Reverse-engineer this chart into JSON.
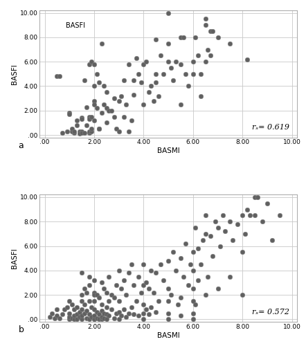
{
  "plot_a": {
    "title_text": "BASFI",
    "rs_label": "rₛ= 0.619",
    "xlabel": "BASMI",
    "ylabel": "BASFI",
    "xlim": [
      -0.2,
      10.2
    ],
    "ylim": [
      -0.2,
      10.2
    ],
    "xticks": [
      0,
      2,
      4,
      6,
      8,
      10
    ],
    "yticks": [
      0,
      2,
      4,
      6,
      8,
      10
    ],
    "x": [
      0.5,
      0.6,
      0.7,
      0.9,
      1.0,
      1.0,
      1.1,
      1.1,
      1.2,
      1.2,
      1.3,
      1.3,
      1.4,
      1.4,
      1.5,
      1.5,
      1.5,
      1.5,
      1.6,
      1.6,
      1.7,
      1.7,
      1.8,
      1.8,
      1.8,
      1.8,
      1.8,
      1.9,
      1.9,
      1.9,
      1.9,
      2.0,
      2.0,
      2.0,
      2.0,
      2.0,
      2.1,
      2.1,
      2.2,
      2.2,
      2.2,
      2.3,
      2.3,
      2.4,
      2.4,
      2.5,
      2.5,
      2.5,
      2.6,
      2.7,
      2.8,
      2.8,
      2.9,
      3.0,
      3.0,
      3.1,
      3.2,
      3.2,
      3.3,
      3.4,
      3.4,
      3.5,
      3.6,
      3.6,
      3.7,
      3.8,
      3.9,
      4.0,
      4.0,
      4.1,
      4.2,
      4.3,
      4.4,
      4.5,
      4.5,
      4.5,
      4.6,
      4.7,
      4.8,
      5.0,
      5.0,
      5.0,
      5.1,
      5.2,
      5.3,
      5.5,
      5.5,
      5.5,
      5.6,
      5.7,
      5.8,
      6.0,
      6.0,
      6.1,
      6.2,
      6.3,
      6.3,
      6.5,
      6.5,
      6.5,
      6.6,
      6.7,
      6.7,
      6.8,
      7.0,
      7.5,
      8.2
    ],
    "y": [
      4.8,
      4.8,
      0.2,
      0.3,
      1.8,
      1.7,
      0.3,
      0.5,
      0.2,
      0.3,
      1.2,
      0.8,
      0.3,
      0.1,
      0.3,
      0.2,
      1.4,
      1.3,
      0.2,
      4.5,
      2.3,
      0.8,
      0.2,
      0.3,
      1.5,
      1.3,
      5.8,
      6.0,
      0.3,
      0.5,
      1.5,
      1.2,
      2.8,
      4.0,
      5.8,
      2.5,
      5.0,
      2.2,
      0.5,
      4.3,
      0.5,
      7.5,
      1.8,
      2.5,
      4.0,
      1.0,
      2.2,
      3.5,
      2.0,
      2.0,
      1.5,
      3.0,
      0.5,
      0.3,
      2.8,
      3.2,
      1.5,
      4.5,
      2.5,
      0.3,
      5.8,
      1.2,
      4.5,
      3.3,
      6.3,
      5.0,
      4.3,
      2.5,
      5.8,
      6.0,
      3.5,
      4.0,
      2.8,
      5.0,
      4.3,
      7.8,
      3.2,
      6.5,
      5.0,
      7.5,
      6.0,
      10.0,
      5.5,
      4.5,
      6.0,
      2.5,
      5.8,
      8.0,
      8.0,
      5.0,
      4.0,
      5.0,
      6.0,
      8.0,
      6.5,
      3.2,
      5.0,
      6.0,
      9.0,
      9.5,
      7.0,
      6.5,
      8.5,
      8.5,
      8.0,
      7.5,
      6.2
    ]
  },
  "plot_b": {
    "rs_label": "rₛ= 0.572",
    "xlabel": "BASMI",
    "ylabel": "BASFI",
    "xlim": [
      -0.2,
      10.2
    ],
    "ylim": [
      -0.2,
      10.2
    ],
    "xticks": [
      0,
      2,
      4,
      6,
      8,
      10
    ],
    "yticks": [
      0,
      2,
      4,
      6,
      8,
      10
    ],
    "x": [
      0.2,
      0.3,
      0.4,
      0.5,
      0.5,
      0.6,
      0.7,
      0.8,
      0.9,
      1.0,
      1.0,
      1.0,
      1.0,
      1.1,
      1.1,
      1.2,
      1.2,
      1.2,
      1.3,
      1.3,
      1.3,
      1.4,
      1.4,
      1.5,
      1.5,
      1.5,
      1.5,
      1.5,
      1.5,
      1.6,
      1.6,
      1.6,
      1.7,
      1.7,
      1.7,
      1.8,
      1.8,
      1.8,
      1.8,
      1.8,
      1.9,
      1.9,
      2.0,
      2.0,
      2.0,
      2.0,
      2.0,
      2.0,
      2.0,
      2.0,
      2.1,
      2.1,
      2.1,
      2.2,
      2.2,
      2.2,
      2.3,
      2.3,
      2.3,
      2.3,
      2.3,
      2.4,
      2.4,
      2.4,
      2.5,
      2.5,
      2.5,
      2.5,
      2.6,
      2.6,
      2.6,
      2.7,
      2.7,
      2.8,
      2.8,
      2.9,
      2.9,
      3.0,
      3.0,
      3.0,
      3.0,
      3.1,
      3.1,
      3.2,
      3.2,
      3.3,
      3.3,
      3.4,
      3.4,
      3.5,
      3.5,
      3.6,
      3.6,
      3.7,
      3.8,
      3.8,
      3.9,
      4.0,
      4.0,
      4.0,
      4.0,
      4.0,
      4.1,
      4.1,
      4.2,
      4.2,
      4.3,
      4.3,
      4.4,
      4.5,
      4.5,
      4.6,
      4.7,
      4.8,
      5.0,
      5.0,
      5.0,
      5.0,
      5.0,
      5.1,
      5.2,
      5.3,
      5.4,
      5.5,
      5.5,
      5.5,
      5.6,
      5.7,
      5.8,
      5.9,
      6.0,
      6.0,
      6.0,
      6.0,
      6.0,
      6.0,
      6.1,
      6.1,
      6.2,
      6.2,
      6.3,
      6.4,
      6.5,
      6.5,
      6.5,
      6.6,
      6.7,
      6.8,
      6.9,
      7.0,
      7.0,
      7.1,
      7.2,
      7.3,
      7.5,
      7.5,
      7.6,
      7.8,
      8.0,
      8.0,
      8.0,
      8.1,
      8.2,
      8.3,
      8.5,
      8.5,
      8.6,
      8.8,
      9.0,
      9.2,
      9.5
    ],
    "y": [
      0.2,
      0.5,
      0.1,
      0.3,
      0.8,
      0.1,
      0.4,
      0.8,
      1.0,
      0.0,
      0.2,
      0.5,
      1.5,
      0.1,
      1.2,
      0.0,
      0.3,
      0.8,
      0.0,
      0.4,
      1.0,
      0.2,
      0.6,
      0.0,
      0.3,
      0.8,
      1.5,
      2.0,
      3.8,
      0.5,
      1.2,
      2.5,
      0.1,
      0.7,
      2.2,
      0.0,
      0.4,
      1.5,
      2.8,
      3.5,
      0.2,
      1.0,
      0.0,
      0.0,
      0.3,
      0.8,
      1.5,
      2.2,
      3.2,
      2.0,
      0.1,
      0.6,
      2.0,
      0.0,
      0.4,
      1.8,
      0.0,
      0.2,
      0.7,
      1.2,
      3.0,
      0.1,
      0.5,
      2.5,
      0.0,
      0.4,
      1.0,
      2.2,
      0.3,
      1.5,
      3.5,
      0.8,
      2.0,
      0.1,
      1.8,
      0.5,
      2.8,
      0.0,
      0.6,
      1.5,
      4.0,
      0.3,
      2.5,
      0.8,
      3.2,
      0.2,
      2.0,
      0.5,
      3.8,
      1.0,
      4.5,
      0.4,
      2.8,
      1.5,
      0.3,
      3.5,
      2.2,
      0.0,
      0.5,
      1.2,
      2.8,
      4.5,
      0.8,
      3.0,
      0.4,
      2.5,
      1.0,
      4.0,
      2.2,
      0.6,
      3.8,
      1.5,
      4.5,
      3.2,
      0.0,
      0.5,
      1.5,
      2.5,
      4.8,
      2.0,
      5.5,
      4.0,
      1.2,
      0.3,
      1.8,
      5.0,
      3.5,
      6.2,
      2.8,
      4.5,
      0.0,
      0.5,
      1.5,
      2.5,
      4.0,
      5.5,
      1.2,
      7.5,
      3.2,
      5.8,
      4.5,
      6.5,
      2.0,
      7.0,
      8.5,
      3.5,
      6.8,
      5.2,
      8.0,
      2.5,
      7.5,
      6.0,
      8.5,
      7.2,
      3.5,
      8.0,
      6.5,
      7.8,
      2.0,
      5.5,
      8.5,
      7.0,
      9.0,
      8.5,
      8.5,
      10.0,
      10.0,
      8.0,
      9.5,
      6.5,
      8.5
    ]
  },
  "marker_color": "#606060",
  "marker_size": 22,
  "marker_edge_color": "#808080",
  "marker_edge_width": 0.4,
  "background_color": "#ffffff",
  "grid_color": "#c8c8c8",
  "grid_linewidth": 0.6,
  "label_a": "a",
  "label_b": "b"
}
